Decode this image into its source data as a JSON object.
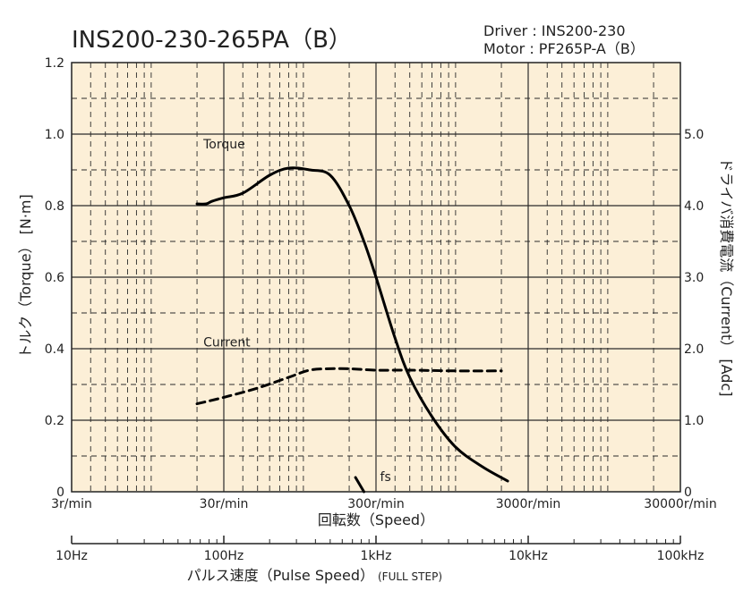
{
  "chart_data": {
    "type": "line",
    "title": "INS200-230-265PA（B）",
    "subtitle_lines": [
      "Driver : INS200-230",
      "Motor : PF265P-A（B）"
    ],
    "xlabel": "回転数（Speed）",
    "x_scale": "log",
    "x_range_rpm": [
      3,
      30000
    ],
    "x_tick_values": [
      3,
      30,
      300,
      3000,
      30000
    ],
    "x_tick_labels": [
      "3r/min",
      "30r/min",
      "300r/min",
      "3000r/min",
      "30000r/min"
    ],
    "ylabel": "トルク（Torque） [N·m]",
    "ylim": [
      0,
      1.2
    ],
    "y_ticks": [
      0,
      0.2,
      0.4,
      0.6,
      0.8,
      1.0,
      1.2
    ],
    "y_tick_labels": [
      "0",
      "0.2",
      "0.4",
      "0.6",
      "0.8",
      "1.0",
      "1.2"
    ],
    "y2label": "ドライバ消費電流（Current） [Adc]",
    "y2lim": [
      0,
      6.0
    ],
    "y2_ticks": [
      0,
      1.0,
      2.0,
      3.0,
      4.0,
      5.0
    ],
    "y2_tick_labels": [
      "0",
      "1.0",
      "2.0",
      "3.0",
      "4.0",
      "5.0"
    ],
    "pulse_axis": {
      "label": "パルス速度（Pulse Speed）",
      "label_note": "(FULL STEP)",
      "tick_labels": [
        "10Hz",
        "100Hz",
        "1kHz",
        "10kHz",
        "100kHz"
      ]
    },
    "grid": true,
    "series": [
      {
        "name": "Torque",
        "axis": "left",
        "style": "solid",
        "x_rpm": [
          20,
          23,
          25,
          30,
          40,
          60,
          80,
          110,
          150,
          200,
          250,
          300,
          400,
          500,
          700,
          1000,
          1500,
          2200
        ],
        "y": [
          0.805,
          0.805,
          0.812,
          0.822,
          0.835,
          0.885,
          0.905,
          0.9,
          0.885,
          0.8,
          0.7,
          0.6,
          0.43,
          0.32,
          0.21,
          0.125,
          0.07,
          0.03
        ]
      },
      {
        "name": "Current",
        "axis": "right",
        "style": "dashed",
        "x_rpm": [
          20,
          30,
          50,
          80,
          110,
          150,
          200,
          300,
          500,
          1000,
          2000
        ],
        "y": [
          1.23,
          1.32,
          1.45,
          1.6,
          1.7,
          1.72,
          1.72,
          1.7,
          1.7,
          1.69,
          1.69
        ]
      }
    ],
    "fs": {
      "label": "fs",
      "x_rpm": [
        220,
        250
      ],
      "y": [
        0.04,
        0
      ]
    },
    "colors": {
      "plot_bg": "#fcefd7",
      "grid": "#2b2b2b",
      "line": "#000000",
      "text": "#222222"
    }
  }
}
